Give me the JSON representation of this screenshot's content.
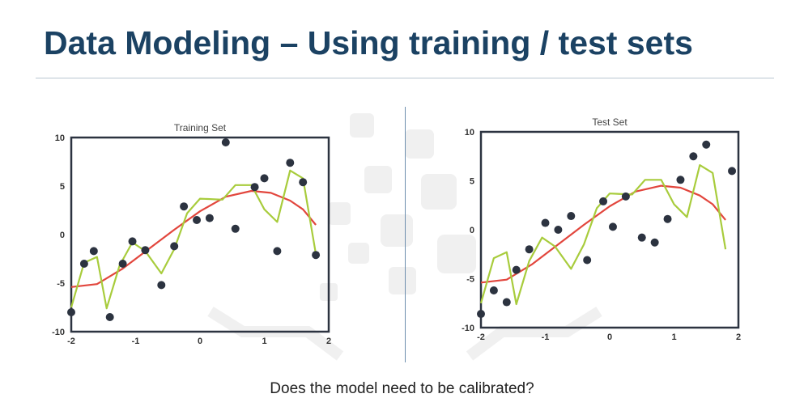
{
  "slide": {
    "title": "Data Modeling – Using training / test sets",
    "footer": "Does the model need to be calibrated?"
  },
  "colors": {
    "title": "#1b4263",
    "smooth_fit": "#e2463d",
    "overfit": "#a8cc3c",
    "points": "#2c3340",
    "frame": "#2c3340",
    "watermark": "#ececec"
  },
  "chart_data": [
    {
      "type": "scatter",
      "title": "Training Set",
      "xlim": [
        -2,
        2
      ],
      "ylim": [
        -10,
        10
      ],
      "x_ticks": [
        "-2",
        "-1",
        "0",
        "1",
        "2"
      ],
      "y_ticks": [
        "10",
        "5",
        "0",
        "-5",
        "-10"
      ],
      "grid": false,
      "points": [
        {
          "x": -2.0,
          "y": -8.0
        },
        {
          "x": -1.8,
          "y": -3.0
        },
        {
          "x": -1.65,
          "y": -1.7
        },
        {
          "x": -1.4,
          "y": -8.5
        },
        {
          "x": -1.2,
          "y": -3.0
        },
        {
          "x": -1.05,
          "y": -0.7
        },
        {
          "x": -0.85,
          "y": -1.6
        },
        {
          "x": -0.6,
          "y": -5.2
        },
        {
          "x": -0.4,
          "y": -1.2
        },
        {
          "x": -0.25,
          "y": 2.9
        },
        {
          "x": -0.05,
          "y": 1.5
        },
        {
          "x": 0.15,
          "y": 1.7
        },
        {
          "x": 0.4,
          "y": 9.5
        },
        {
          "x": 0.55,
          "y": 0.6
        },
        {
          "x": 0.85,
          "y": 4.9
        },
        {
          "x": 1.0,
          "y": 5.8
        },
        {
          "x": 1.2,
          "y": -1.7
        },
        {
          "x": 1.4,
          "y": 7.4
        },
        {
          "x": 1.6,
          "y": 5.4
        },
        {
          "x": 1.8,
          "y": -2.1
        }
      ],
      "smooth_fit": [
        {
          "x": -2.0,
          "y": -5.4
        },
        {
          "x": -1.6,
          "y": -5.1
        },
        {
          "x": -1.2,
          "y": -3.5
        },
        {
          "x": -0.8,
          "y": -1.5
        },
        {
          "x": -0.4,
          "y": 0.5
        },
        {
          "x": 0.0,
          "y": 2.4
        },
        {
          "x": 0.4,
          "y": 3.9
        },
        {
          "x": 0.8,
          "y": 4.5
        },
        {
          "x": 1.1,
          "y": 4.3
        },
        {
          "x": 1.4,
          "y": 3.5
        },
        {
          "x": 1.6,
          "y": 2.6
        },
        {
          "x": 1.8,
          "y": 1.0
        }
      ],
      "overfit": [
        {
          "x": -2.0,
          "y": -7.5
        },
        {
          "x": -1.8,
          "y": -2.9
        },
        {
          "x": -1.6,
          "y": -2.3
        },
        {
          "x": -1.45,
          "y": -7.6
        },
        {
          "x": -1.25,
          "y": -3.2
        },
        {
          "x": -1.05,
          "y": -0.8
        },
        {
          "x": -0.85,
          "y": -1.7
        },
        {
          "x": -0.6,
          "y": -4.0
        },
        {
          "x": -0.4,
          "y": -1.5
        },
        {
          "x": -0.2,
          "y": 2.2
        },
        {
          "x": 0.0,
          "y": 3.7
        },
        {
          "x": 0.35,
          "y": 3.6
        },
        {
          "x": 0.55,
          "y": 5.1
        },
        {
          "x": 0.8,
          "y": 5.1
        },
        {
          "x": 1.0,
          "y": 2.6
        },
        {
          "x": 1.2,
          "y": 1.3
        },
        {
          "x": 1.4,
          "y": 6.6
        },
        {
          "x": 1.6,
          "y": 5.8
        },
        {
          "x": 1.8,
          "y": -2.0
        }
      ]
    },
    {
      "type": "scatter",
      "title": "Test Set",
      "xlim": [
        -2,
        2
      ],
      "ylim": [
        -10,
        10
      ],
      "x_ticks": [
        "-2",
        "-1",
        "0",
        "1",
        "2"
      ],
      "y_ticks": [
        "10",
        "5",
        "0",
        "-5",
        "-10"
      ],
      "grid": false,
      "points": [
        {
          "x": -2.0,
          "y": -8.6
        },
        {
          "x": -1.8,
          "y": -6.2
        },
        {
          "x": -1.6,
          "y": -7.4
        },
        {
          "x": -1.45,
          "y": -4.1
        },
        {
          "x": -1.25,
          "y": -2.0
        },
        {
          "x": -1.0,
          "y": 0.7
        },
        {
          "x": -0.8,
          "y": 0.0
        },
        {
          "x": -0.6,
          "y": 1.4
        },
        {
          "x": -0.35,
          "y": -3.1
        },
        {
          "x": -0.1,
          "y": 2.9
        },
        {
          "x": 0.05,
          "y": 0.3
        },
        {
          "x": 0.25,
          "y": 3.4
        },
        {
          "x": 0.5,
          "y": -0.8
        },
        {
          "x": 0.7,
          "y": -1.3
        },
        {
          "x": 0.9,
          "y": 1.1
        },
        {
          "x": 1.1,
          "y": 5.1
        },
        {
          "x": 1.3,
          "y": 7.5
        },
        {
          "x": 1.5,
          "y": 8.7
        },
        {
          "x": 1.9,
          "y": 6.0
        }
      ],
      "smooth_fit": [
        {
          "x": -2.0,
          "y": -5.4
        },
        {
          "x": -1.6,
          "y": -5.1
        },
        {
          "x": -1.2,
          "y": -3.5
        },
        {
          "x": -0.8,
          "y": -1.5
        },
        {
          "x": -0.4,
          "y": 0.5
        },
        {
          "x": 0.0,
          "y": 2.4
        },
        {
          "x": 0.4,
          "y": 3.9
        },
        {
          "x": 0.8,
          "y": 4.5
        },
        {
          "x": 1.1,
          "y": 4.3
        },
        {
          "x": 1.4,
          "y": 3.5
        },
        {
          "x": 1.6,
          "y": 2.6
        },
        {
          "x": 1.8,
          "y": 1.0
        }
      ],
      "overfit": [
        {
          "x": -2.0,
          "y": -7.5
        },
        {
          "x": -1.8,
          "y": -2.9
        },
        {
          "x": -1.6,
          "y": -2.3
        },
        {
          "x": -1.45,
          "y": -7.6
        },
        {
          "x": -1.25,
          "y": -3.2
        },
        {
          "x": -1.05,
          "y": -0.8
        },
        {
          "x": -0.85,
          "y": -1.7
        },
        {
          "x": -0.6,
          "y": -4.0
        },
        {
          "x": -0.4,
          "y": -1.5
        },
        {
          "x": -0.2,
          "y": 2.2
        },
        {
          "x": 0.0,
          "y": 3.7
        },
        {
          "x": 0.35,
          "y": 3.6
        },
        {
          "x": 0.55,
          "y": 5.1
        },
        {
          "x": 0.8,
          "y": 5.1
        },
        {
          "x": 1.0,
          "y": 2.6
        },
        {
          "x": 1.2,
          "y": 1.3
        },
        {
          "x": 1.4,
          "y": 6.6
        },
        {
          "x": 1.6,
          "y": 5.8
        },
        {
          "x": 1.8,
          "y": -2.0
        }
      ]
    }
  ]
}
